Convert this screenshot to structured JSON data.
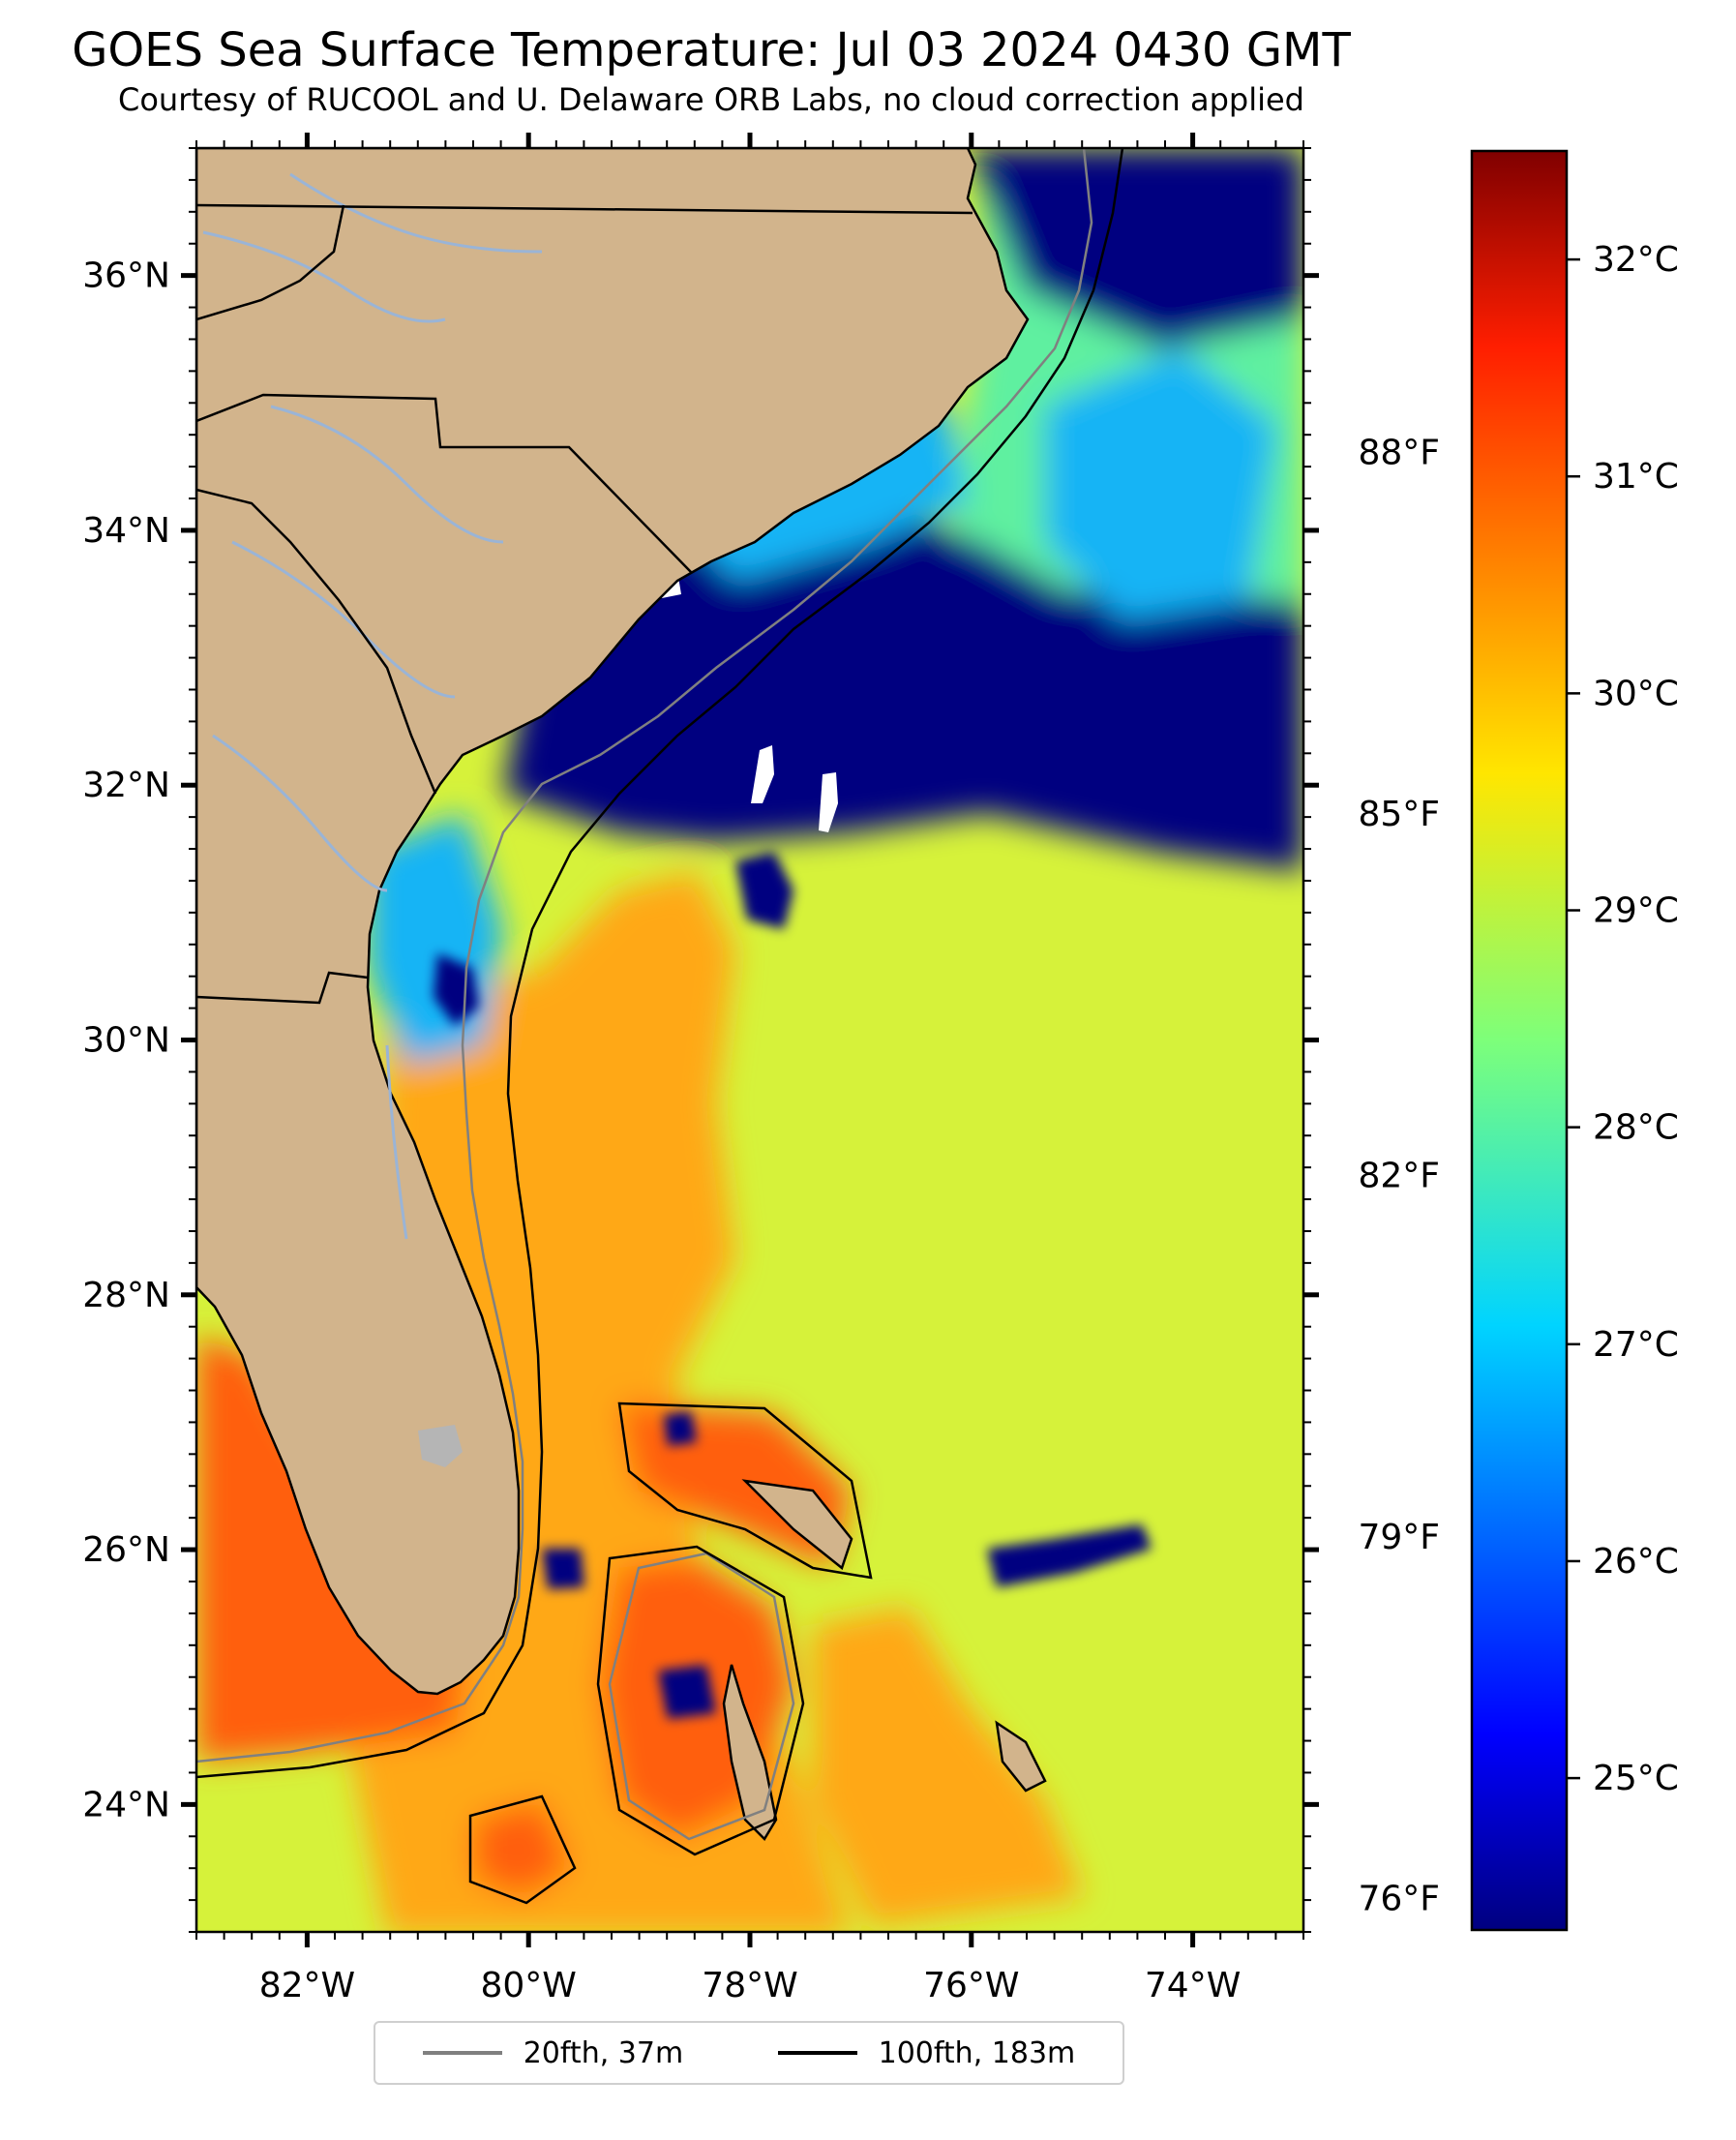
{
  "title": "GOES Sea Surface Temperature: Jul 03 2024 0430 GMT",
  "subtitle": "Courtesy of RUCOOL and U. Delaware ORB Labs, no cloud correction applied",
  "map": {
    "extent": {
      "lon_min": -83.0,
      "lon_max": -73.0,
      "lat_min": 23.0,
      "lat_max": 37.0
    },
    "lat_ticks": [
      {
        "value": 24,
        "label": "24°N"
      },
      {
        "value": 26,
        "label": "26°N"
      },
      {
        "value": 28,
        "label": "28°N"
      },
      {
        "value": 30,
        "label": "30°N"
      },
      {
        "value": 32,
        "label": "32°N"
      },
      {
        "value": 34,
        "label": "34°N"
      },
      {
        "value": 36,
        "label": "36°N"
      }
    ],
    "lon_ticks": [
      {
        "value": -82,
        "label": "82°W"
      },
      {
        "value": -80,
        "label": "80°W"
      },
      {
        "value": -78,
        "label": "78°W"
      },
      {
        "value": -76,
        "label": "76°W"
      },
      {
        "value": -74,
        "label": "74°W"
      }
    ],
    "colors": {
      "land": "#d2b48c",
      "cold": "#000080",
      "cool": "#19b4f5",
      "mild": "#5ef0a0",
      "warm": "#d6f23a",
      "hot": "#ffa812",
      "hottest": "#ff5f10",
      "cloud": "#ffffff",
      "lake": "#b5b5b5",
      "river": "#9ab4d6",
      "border": "#000000",
      "isobath_20": "#808080",
      "isobath_100": "#000000"
    }
  },
  "colorbar": {
    "c_min": 24.3,
    "c_max": 32.5,
    "celsius_ticks": [
      {
        "value": 25,
        "label": "25°C"
      },
      {
        "value": 26,
        "label": "26°C"
      },
      {
        "value": 27,
        "label": "27°C"
      },
      {
        "value": 28,
        "label": "28°C"
      },
      {
        "value": 29,
        "label": "29°C"
      },
      {
        "value": 30,
        "label": "30°C"
      },
      {
        "value": 31,
        "label": "31°C"
      },
      {
        "value": 32,
        "label": "32°C"
      }
    ],
    "fahrenheit_ticks": [
      {
        "value": 76,
        "label": "76°F"
      },
      {
        "value": 79,
        "label": "79°F"
      },
      {
        "value": 82,
        "label": "82°F"
      },
      {
        "value": 85,
        "label": "85°F"
      },
      {
        "value": 88,
        "label": "88°F"
      }
    ],
    "colormap": "jet"
  },
  "legend": {
    "items": [
      {
        "label": "20fth, 37m",
        "color": "#808080"
      },
      {
        "label": "100fth, 183m",
        "color": "#000000"
      }
    ]
  }
}
